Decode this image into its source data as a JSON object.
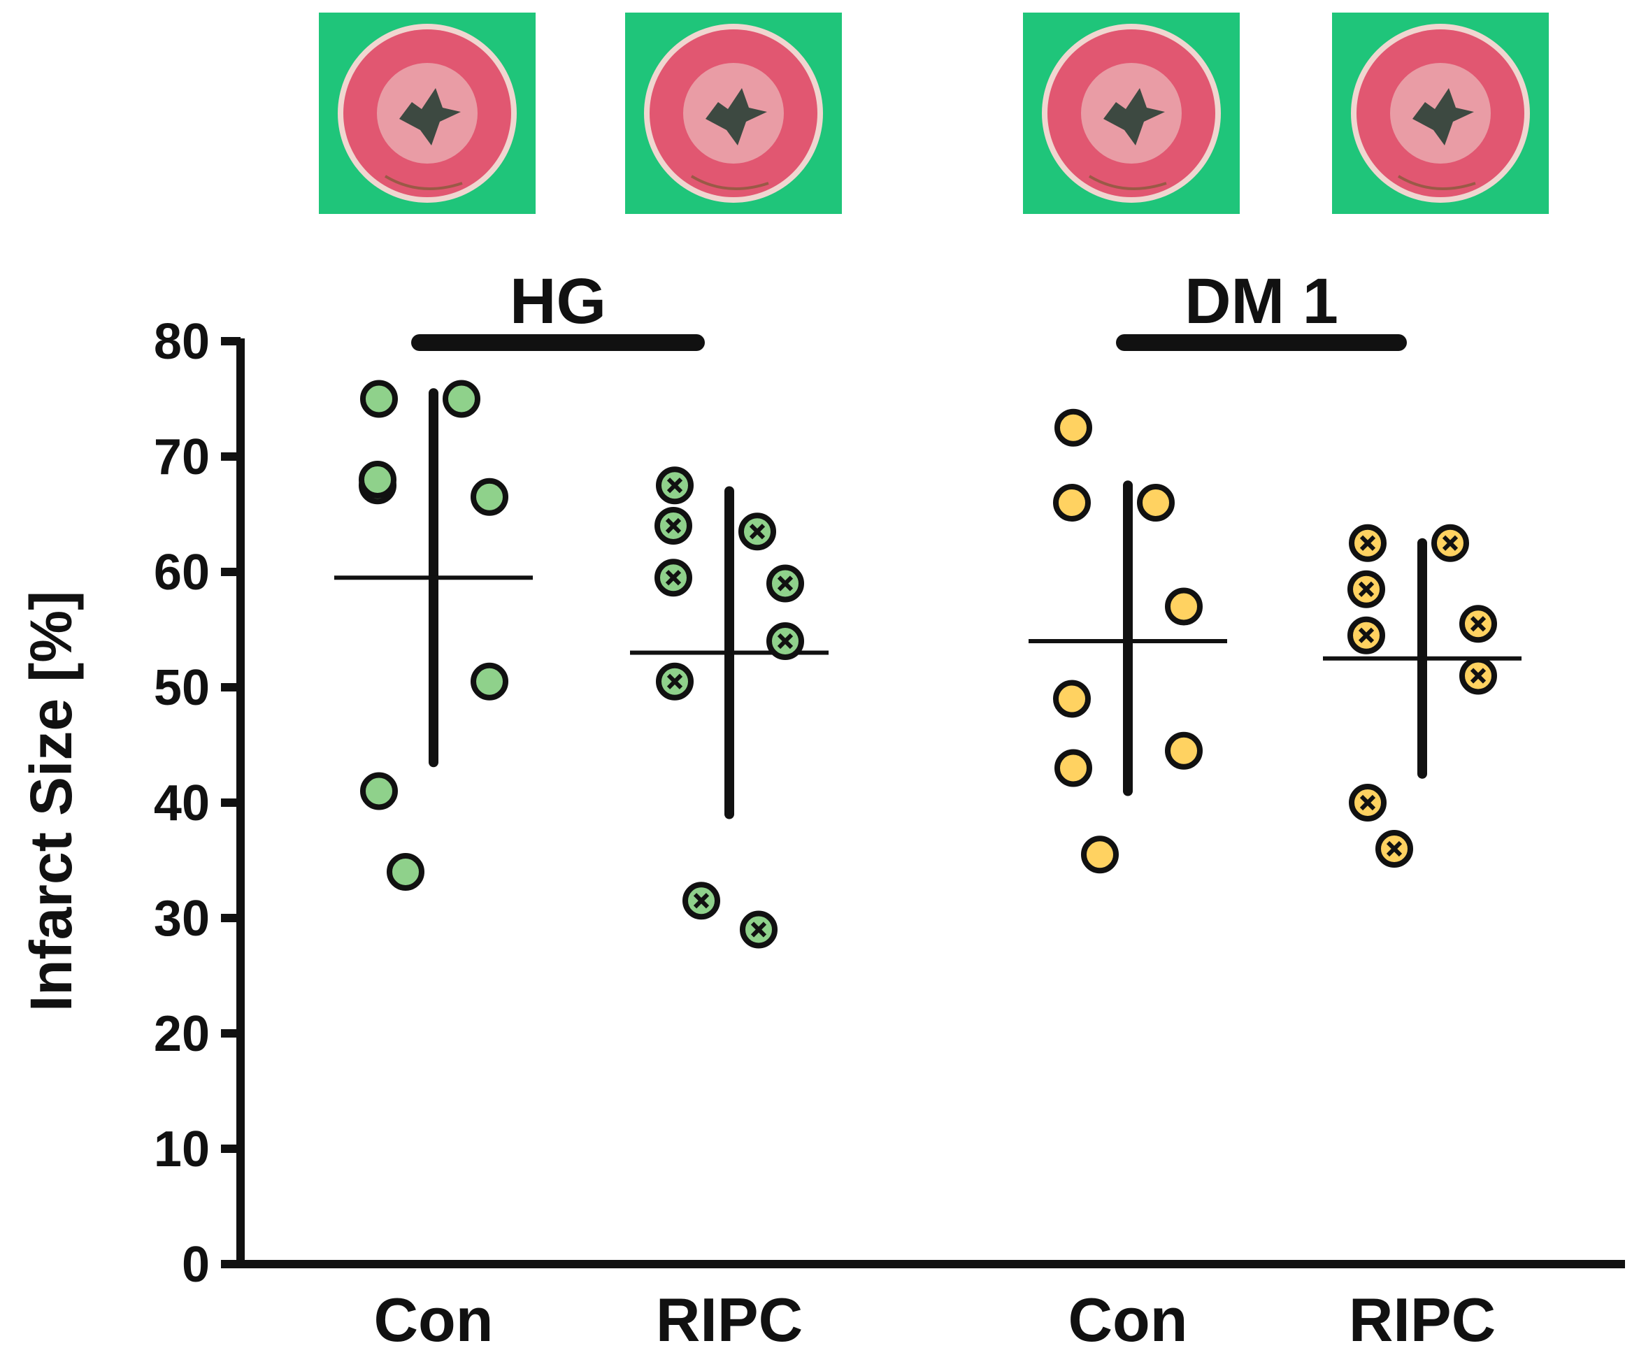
{
  "chart_data": {
    "type": "scatter",
    "ylabel": "Infarct Size [%]",
    "ylim": [
      0,
      80
    ],
    "yticks": [
      0,
      10,
      20,
      30,
      40,
      50,
      60,
      70,
      80
    ],
    "groups": [
      {
        "name": "HG",
        "categories": [
          "Con",
          "RIPC"
        ]
      },
      {
        "name": "DM 1",
        "categories": [
          "Con",
          "RIPC"
        ]
      }
    ],
    "series": [
      {
        "group": "HG",
        "name": "Con",
        "color": "#8FD18B",
        "marker": "open-circle",
        "values": [
          75,
          75,
          67.5,
          66.5,
          68,
          50.5,
          41,
          34
        ],
        "mean": 59.5,
        "sd_low": 43.5,
        "sd_high": 75.5
      },
      {
        "group": "HG",
        "name": "RIPC",
        "color": "#8FD18B",
        "marker": "crossed-circle",
        "values": [
          67.5,
          63.5,
          64,
          59,
          59.5,
          54,
          50.5,
          31.5,
          29
        ],
        "mean": 53,
        "sd_low": 39,
        "sd_high": 67
      },
      {
        "group": "DM 1",
        "name": "Con",
        "color": "#FFD261",
        "marker": "open-circle",
        "values": [
          72.5,
          66,
          66,
          57,
          49,
          44.5,
          43,
          35.5
        ],
        "mean": 54,
        "sd_low": 41,
        "sd_high": 67.5
      },
      {
        "group": "DM 1",
        "name": "RIPC",
        "color": "#FFD261",
        "marker": "crossed-circle",
        "values": [
          62.5,
          62.5,
          58.5,
          55.5,
          54.5,
          51,
          40,
          36
        ],
        "mean": 52.5,
        "sd_low": 42.5,
        "sd_high": 62.5
      }
    ]
  },
  "panel_images": [
    {
      "label": "HG Con heart slice",
      "background": "#1FC57A",
      "tissue": "#E04C68",
      "pale": "#F0D6D0"
    },
    {
      "label": "HG RIPC heart slice",
      "background": "#1FC57A",
      "tissue": "#E04C68",
      "pale": "#F0D6D0"
    },
    {
      "label": "DM 1 Con heart slice",
      "background": "#1FC57A",
      "tissue": "#E04C68",
      "pale": "#F0D6D0"
    },
    {
      "label": "DM 1 RIPC heart slice",
      "background": "#1FC57A",
      "tissue": "#E04C68",
      "pale": "#F0D6D0"
    }
  ]
}
